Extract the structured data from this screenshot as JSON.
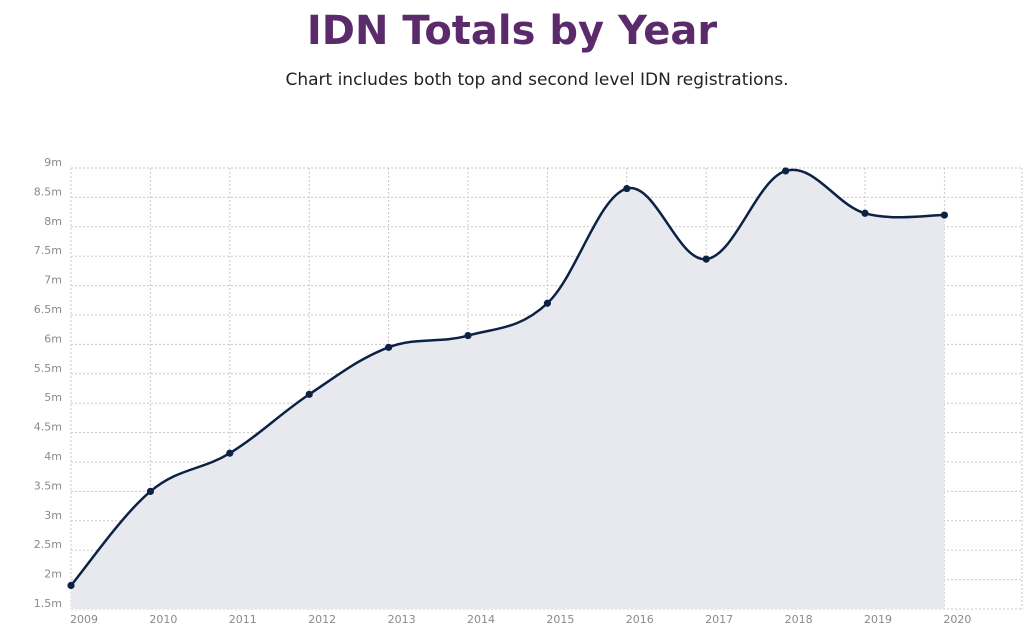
{
  "chart_data": {
    "type": "area",
    "title": "IDN Totals by Year",
    "subtitle": "Chart includes both top and second level IDN registrations.",
    "x": [
      "2009",
      "2010",
      "2011",
      "2012",
      "2013",
      "2014",
      "2015",
      "2016",
      "2017",
      "2018",
      "2019",
      "2020"
    ],
    "series": [
      {
        "values": [
          1.9,
          3.5,
          4.15,
          5.15,
          5.95,
          6.15,
          6.7,
          8.65,
          7.45,
          8.95,
          8.23,
          8.2
        ]
      }
    ],
    "y_unit": "m",
    "yticks": [
      "1.5m",
      "2m",
      "2.5m",
      "3m",
      "3.5m",
      "4m",
      "4.5m",
      "5m",
      "5.5m",
      "6m",
      "6.5m",
      "7m",
      "7.5m",
      "8m",
      "8.5m",
      "9m"
    ],
    "ylim": [
      1.5,
      9
    ],
    "grid": true,
    "colors": {
      "line": "#0d2145",
      "fill": "#e8e9ee",
      "grid": "#c8c8c8",
      "title": "#5b2a6b"
    }
  }
}
